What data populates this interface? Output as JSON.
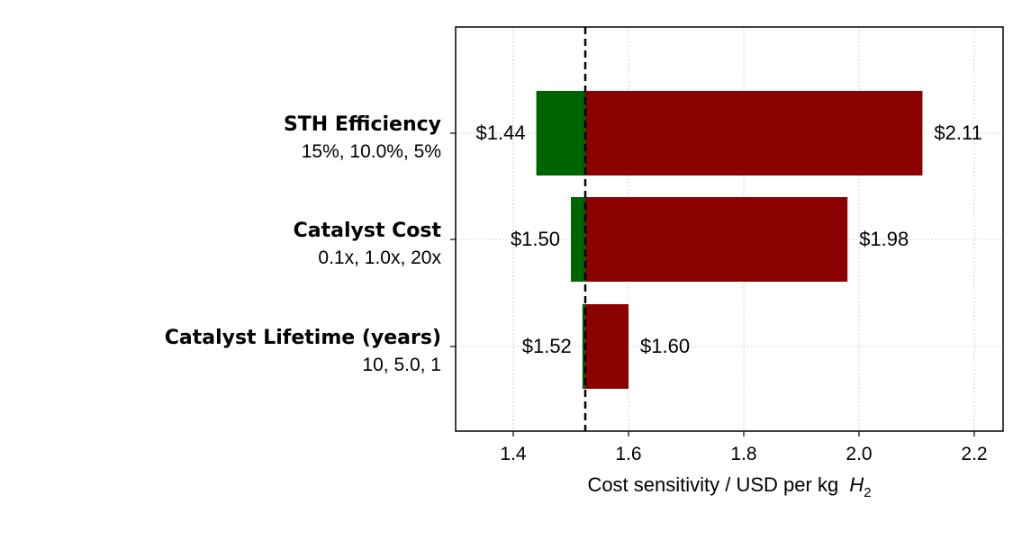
{
  "chart_data": {
    "type": "bar",
    "orientation": "horizontal",
    "chart_style": "tornado",
    "xlabel": "Cost sensitivity / USD per kg",
    "xlabel_math": "H",
    "xlabel_math_sub": "2",
    "xlim": [
      1.3,
      2.25
    ],
    "xticks": [
      1.4,
      1.6,
      1.8,
      2.0,
      2.2
    ],
    "xtick_labels": [
      "1.4",
      "1.6",
      "1.8",
      "2.0",
      "2.2"
    ],
    "grid": true,
    "baseline": 1.525,
    "categories": [
      {
        "name": "STH Efficiency",
        "levels": "15%, 10.0%, 5%",
        "low": 1.44,
        "high": 2.11,
        "low_label": "$1.44",
        "high_label": "$2.11"
      },
      {
        "name": "Catalyst Cost",
        "levels": "0.1x, 1.0x, 20x",
        "low": 1.5,
        "high": 1.98,
        "low_label": "$1.50",
        "high_label": "$1.98"
      },
      {
        "name": "Catalyst Lifetime (years)",
        "levels": "10, 5.0, 1",
        "low": 1.52,
        "high": 1.6,
        "low_label": "$1.52",
        "high_label": "$1.60"
      }
    ],
    "colors": {
      "low": "#006400",
      "high": "#8b0000",
      "baseline": "#000000",
      "grid": "#b0b0b0"
    }
  }
}
